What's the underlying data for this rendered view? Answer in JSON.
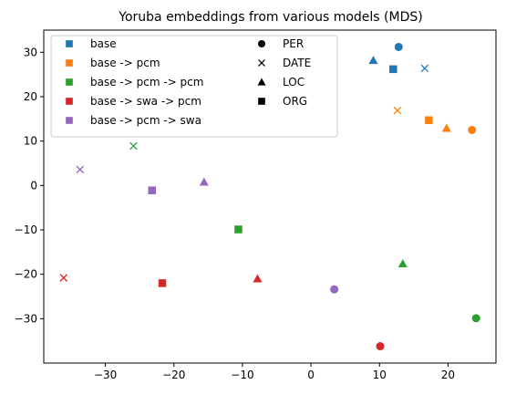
{
  "chart_data": {
    "type": "scatter",
    "title": "Yoruba embeddings from various models (MDS)",
    "xlabel": "",
    "ylabel": "",
    "xlim": [
      -39,
      27
    ],
    "ylim": [
      -40,
      35
    ],
    "xticks": [
      -30,
      -20,
      -10,
      0,
      10,
      20
    ],
    "yticks": [
      -30,
      -20,
      -10,
      0,
      10,
      20,
      30
    ],
    "grid": false,
    "legend_models_placement": "upper-left",
    "legend_types_placement": "upper-center",
    "series": [
      {
        "name": "base",
        "color": "#1f77b4",
        "points": [
          {
            "type": "PER",
            "x": 12.8,
            "y": 31.2
          },
          {
            "type": "DATE",
            "x": 16.6,
            "y": 26.4
          },
          {
            "type": "LOC",
            "x": 9.1,
            "y": 28.2
          },
          {
            "type": "ORG",
            "x": 12.0,
            "y": 26.2
          }
        ]
      },
      {
        "name": "base -> pcm",
        "color": "#ff7f0e",
        "points": [
          {
            "type": "PER",
            "x": 23.5,
            "y": 12.5
          },
          {
            "type": "DATE",
            "x": 12.6,
            "y": 16.9
          },
          {
            "type": "LOC",
            "x": 19.8,
            "y": 12.9
          },
          {
            "type": "ORG",
            "x": 17.2,
            "y": 14.7
          }
        ]
      },
      {
        "name": "base -> pcm -> pcm",
        "color": "#2ca02c",
        "points": [
          {
            "type": "PER",
            "x": 24.1,
            "y": -29.9
          },
          {
            "type": "DATE",
            "x": -25.9,
            "y": 8.9
          },
          {
            "type": "LOC",
            "x": 13.4,
            "y": -17.6
          },
          {
            "type": "ORG",
            "x": -10.6,
            "y": -9.9
          }
        ]
      },
      {
        "name": "base -> swa -> pcm",
        "color": "#d62728",
        "points": [
          {
            "type": "PER",
            "x": 10.1,
            "y": -36.2
          },
          {
            "type": "DATE",
            "x": -36.1,
            "y": -20.8
          },
          {
            "type": "LOC",
            "x": -7.8,
            "y": -21.0
          },
          {
            "type": "ORG",
            "x": -21.7,
            "y": -22.0
          }
        ]
      },
      {
        "name": "base -> pcm -> swa",
        "color": "#9467bd",
        "points": [
          {
            "type": "PER",
            "x": 3.4,
            "y": -23.4
          },
          {
            "type": "DATE",
            "x": -33.7,
            "y": 3.6
          },
          {
            "type": "LOC",
            "x": -15.6,
            "y": 0.8
          },
          {
            "type": "ORG",
            "x": -23.2,
            "y": -1.1
          }
        ]
      }
    ],
    "marker_legend": [
      {
        "label": "PER",
        "marker": "circle"
      },
      {
        "label": "DATE",
        "marker": "x"
      },
      {
        "label": "LOC",
        "marker": "triangle"
      },
      {
        "label": "ORG",
        "marker": "square"
      }
    ]
  }
}
